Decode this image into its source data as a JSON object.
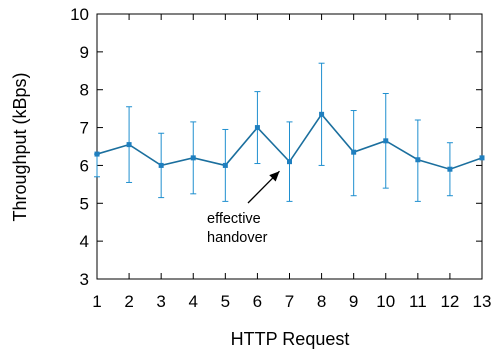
{
  "chart_data": {
    "type": "line",
    "title": "",
    "xlabel": "HTTP Request",
    "ylabel": "Throughput (kBps)",
    "x": [
      1,
      2,
      3,
      4,
      5,
      6,
      7,
      8,
      9,
      10,
      11,
      12,
      13
    ],
    "xlim": [
      1,
      13
    ],
    "ylim": [
      3,
      10
    ],
    "xticks": [
      "1",
      "2",
      "3",
      "4",
      "5",
      "6",
      "7",
      "8",
      "9",
      "10",
      "11",
      "12",
      "13"
    ],
    "yticks": [
      "3",
      "4",
      "5",
      "6",
      "7",
      "8",
      "9",
      "10"
    ],
    "grid": false,
    "legend": "none",
    "series": [
      {
        "values": [
          6.3,
          6.55,
          6.0,
          6.2,
          6.0,
          7.0,
          6.1,
          7.35,
          6.35,
          6.65,
          6.15,
          5.9,
          6.2
        ],
        "error_low": [
          5.7,
          5.55,
          5.15,
          5.25,
          5.05,
          6.05,
          5.05,
          6.0,
          5.2,
          5.4,
          5.05,
          5.2,
          6.2
        ],
        "error_high": [
          6.3,
          7.55,
          6.85,
          7.15,
          6.95,
          7.95,
          7.15,
          8.7,
          7.45,
          7.9,
          7.2,
          6.6,
          6.2
        ],
        "color": "#1f8fcf",
        "line_color": "#1b6f9e",
        "marker_color": "#1f7fbf"
      }
    ],
    "annotations": [
      {
        "text": "effective\nhandover",
        "lines": [
          "effective",
          "handover"
        ],
        "arrow_to_x": 7,
        "arrow_to_y": 5.9
      }
    ]
  }
}
